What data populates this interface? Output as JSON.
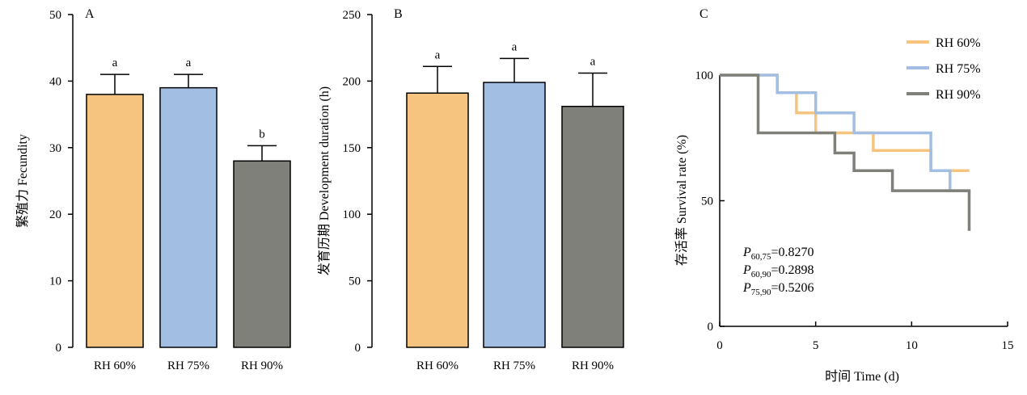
{
  "chart_data": [
    {
      "type": "bar",
      "panel_label": "A",
      "ylabel": "繁殖力 Fecundity",
      "ylim": [
        0,
        50
      ],
      "yticks": [
        "0",
        "10",
        "20",
        "30",
        "40",
        "50"
      ],
      "categories": [
        "RH 60%",
        "RH 75%",
        "RH 90%"
      ],
      "values": [
        38,
        39,
        28
      ],
      "errors": [
        3,
        2,
        2.3
      ],
      "significance": [
        "a",
        "a",
        "b"
      ],
      "colors": [
        "#f6c47f",
        "#a2bfe3",
        "#80807a"
      ]
    },
    {
      "type": "bar",
      "panel_label": "B",
      "ylabel": "发育历期 Development duration (h)",
      "ylim": [
        0,
        250
      ],
      "yticks": [
        "0",
        "50",
        "100",
        "150",
        "200",
        "250"
      ],
      "categories": [
        "RH 60%",
        "RH 75%",
        "RH 90%"
      ],
      "values": [
        191,
        199,
        181
      ],
      "errors": [
        20,
        18,
        25
      ],
      "significance": [
        "a",
        "a",
        "a"
      ],
      "colors": [
        "#f6c47f",
        "#a2bfe3",
        "#80807a"
      ]
    },
    {
      "type": "line",
      "step": true,
      "panel_label": "C",
      "xlabel": "时间 Time (d)",
      "ylabel": "存活率 Survival rate (%)",
      "xlim": [
        0,
        15
      ],
      "ylim": [
        0,
        100
      ],
      "xticks": [
        "0",
        "5",
        "10",
        "15"
      ],
      "yticks": [
        "0",
        "50",
        "100"
      ],
      "legend_position": "top-right",
      "series": [
        {
          "name": "RH 60%",
          "color": "#f6c47f",
          "points": [
            [
              0,
              100
            ],
            [
              3,
              100
            ],
            [
              3,
              93
            ],
            [
              4,
              93
            ],
            [
              4,
              85
            ],
            [
              5,
              85
            ],
            [
              5,
              77
            ],
            [
              8,
              77
            ],
            [
              8,
              70
            ],
            [
              11,
              70
            ],
            [
              11,
              62
            ],
            [
              13,
              62
            ]
          ]
        },
        {
          "name": "RH 75%",
          "color": "#a2bfe3",
          "points": [
            [
              0,
              100
            ],
            [
              3,
              100
            ],
            [
              3,
              93
            ],
            [
              5,
              93
            ],
            [
              5,
              85
            ],
            [
              7,
              85
            ],
            [
              7,
              77
            ],
            [
              11,
              77
            ],
            [
              11,
              62
            ],
            [
              12,
              62
            ],
            [
              12,
              54
            ],
            [
              13,
              54
            ]
          ]
        },
        {
          "name": "RH 90%",
          "color": "#80807a",
          "points": [
            [
              0,
              100
            ],
            [
              2,
              100
            ],
            [
              2,
              77
            ],
            [
              6,
              77
            ],
            [
              6,
              69
            ],
            [
              7,
              69
            ],
            [
              7,
              62
            ],
            [
              9,
              62
            ],
            [
              9,
              54
            ],
            [
              13,
              54
            ],
            [
              13,
              38
            ]
          ]
        }
      ],
      "stats": [
        {
          "sub": "60,75",
          "value": "=0.8270"
        },
        {
          "sub": "60,90",
          "value": "=0.2898"
        },
        {
          "sub": "75,90",
          "value": "=0.5206"
        }
      ],
      "stats_symbol": "P"
    }
  ]
}
